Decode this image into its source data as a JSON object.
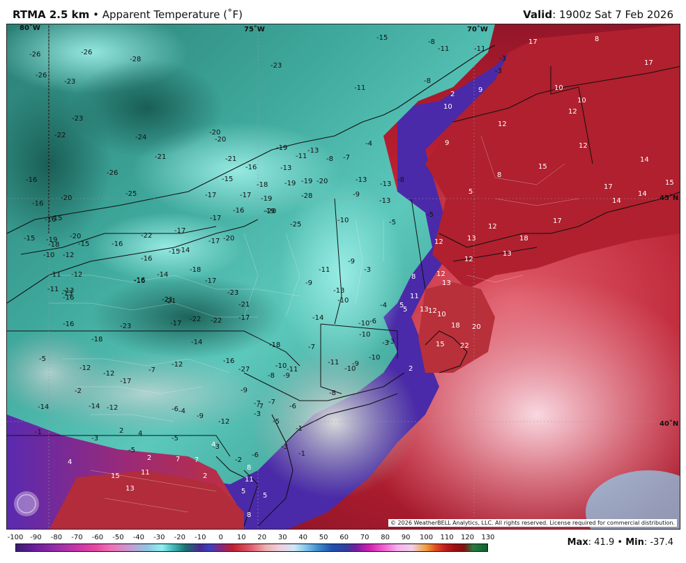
{
  "header": {
    "product": "RTMA 2.5 km",
    "separator": "•",
    "field": "Apparent Temperature (˚F)",
    "valid_label": "Valid",
    "valid_time": ": 1900z Sat 7 Feb 2026"
  },
  "grid_labels": {
    "lon80": "80˚W",
    "lon75": "75˚W",
    "lon70": "70˚W",
    "lat45": "45˚N",
    "lat40": "40˚N"
  },
  "copyright": "© 2026 WeatherBELL Analytics, LLC. All rights reserved. License required for commercial distribution.",
  "legend": {
    "ticks": [
      "-100",
      "-90",
      "-80",
      "-70",
      "-60",
      "-50",
      "-40",
      "-30",
      "-20",
      "-10",
      "0",
      "10",
      "20",
      "30",
      "40",
      "50",
      "60",
      "70",
      "80",
      "90",
      "100",
      "110",
      "120",
      "130"
    ],
    "max_label": "Max",
    "max_value": ": 41.9",
    "dot": "•",
    "min_label": "Min",
    "min_value": ": -37.4"
  },
  "colors": {
    "cold_teal": "#1f6e66",
    "light_teal": "#7fe0d8",
    "ocean_purple": "#4a2aa0",
    "warm_red": "#b8222e",
    "pink": "#f0a8b8",
    "gray": "#b8c0c0"
  },
  "map_values": [
    {
      "t": "-15"
    },
    {
      "t": "-8"
    },
    {
      "t": "-11"
    },
    {
      "t": "-11"
    },
    {
      "t": "-3"
    },
    {
      "t": "17"
    },
    {
      "t": "8"
    },
    {
      "t": "17"
    },
    {
      "t": "-26"
    },
    {
      "t": "-26"
    },
    {
      "t": "-28"
    },
    {
      "t": "-23"
    },
    {
      "t": "-3"
    },
    {
      "t": "-26"
    },
    {
      "t": "-23"
    },
    {
      "t": "-11"
    },
    {
      "t": "-8"
    },
    {
      "t": "2"
    },
    {
      "t": "9"
    },
    {
      "t": "10"
    },
    {
      "t": "10"
    },
    {
      "t": "10"
    },
    {
      "t": "12"
    },
    {
      "t": "-23"
    },
    {
      "t": "-20"
    },
    {
      "t": "-4"
    },
    {
      "t": "12"
    },
    {
      "t": "-22"
    },
    {
      "t": "-24"
    },
    {
      "t": "-20"
    },
    {
      "t": "-19"
    },
    {
      "t": "-13"
    },
    {
      "t": "-21"
    },
    {
      "t": "-8"
    },
    {
      "t": "-7"
    },
    {
      "t": "9"
    },
    {
      "t": "12"
    },
    {
      "t": "-21"
    },
    {
      "t": "-16"
    },
    {
      "t": "-13"
    },
    {
      "t": "-11"
    },
    {
      "t": "14"
    },
    {
      "t": "15"
    },
    {
      "t": "-26"
    },
    {
      "t": "-16"
    },
    {
      "t": "-15"
    },
    {
      "t": "-18"
    },
    {
      "t": "-19"
    },
    {
      "t": "-19"
    },
    {
      "t": "-20"
    },
    {
      "t": "-13"
    },
    {
      "t": "-13"
    },
    {
      "t": "8"
    },
    {
      "t": "-8"
    },
    {
      "t": "15"
    },
    {
      "t": "17"
    },
    {
      "t": "14"
    },
    {
      "t": "-25"
    },
    {
      "t": "-17"
    },
    {
      "t": "-17"
    },
    {
      "t": "-19"
    },
    {
      "t": "-28"
    },
    {
      "t": "-9"
    },
    {
      "t": "-13"
    },
    {
      "t": "5"
    },
    {
      "t": "-16"
    },
    {
      "t": "-20"
    },
    {
      "t": "-19"
    },
    {
      "t": "-16"
    },
    {
      "t": "-20"
    },
    {
      "t": "14"
    },
    {
      "t": "-5"
    },
    {
      "t": "-17"
    },
    {
      "t": "-25"
    },
    {
      "t": "-10"
    },
    {
      "t": "-5"
    },
    {
      "t": "12"
    },
    {
      "t": "17"
    },
    {
      "t": "-16"
    },
    {
      "t": "-15"
    },
    {
      "t": "-19"
    },
    {
      "t": "-20"
    },
    {
      "t": "-15"
    },
    {
      "t": "-16"
    },
    {
      "t": "-22"
    },
    {
      "t": "-17"
    },
    {
      "t": "-17"
    },
    {
      "t": "-20"
    },
    {
      "t": "-16"
    },
    {
      "t": "-14"
    },
    {
      "t": "12"
    },
    {
      "t": "13"
    },
    {
      "t": "18"
    },
    {
      "t": "-18"
    },
    {
      "t": "-15"
    },
    {
      "t": "-15"
    },
    {
      "t": "-10"
    },
    {
      "t": "-12"
    },
    {
      "t": "-16"
    },
    {
      "t": "-9"
    },
    {
      "t": "-11"
    },
    {
      "t": "-12"
    },
    {
      "t": "-14"
    },
    {
      "t": "-18"
    },
    {
      "t": "-17"
    },
    {
      "t": "-11"
    },
    {
      "t": "-3"
    },
    {
      "t": "12"
    },
    {
      "t": "13"
    },
    {
      "t": "12"
    },
    {
      "t": "-11"
    },
    {
      "t": "-13"
    },
    {
      "t": "-16"
    },
    {
      "t": "-21"
    },
    {
      "t": "-9"
    },
    {
      "t": "8"
    },
    {
      "t": "13"
    },
    {
      "t": "-13"
    },
    {
      "t": "-21"
    },
    {
      "t": "-23"
    },
    {
      "t": "-13"
    },
    {
      "t": "-16"
    },
    {
      "t": "-10"
    },
    {
      "t": "-21"
    },
    {
      "t": "-22"
    },
    {
      "t": "-17"
    },
    {
      "t": "-4"
    },
    {
      "t": "5"
    },
    {
      "t": "13"
    },
    {
      "t": "-16"
    },
    {
      "t": "-23"
    },
    {
      "t": "-17"
    },
    {
      "t": "-22"
    },
    {
      "t": "-14"
    },
    {
      "t": "-10"
    },
    {
      "t": "-6"
    },
    {
      "t": "11"
    },
    {
      "t": "12"
    },
    {
      "t": "10"
    },
    {
      "t": "18"
    },
    {
      "t": "20"
    },
    {
      "t": "-18"
    },
    {
      "t": "-14"
    },
    {
      "t": "-18"
    },
    {
      "t": "-7"
    },
    {
      "t": "-10"
    },
    {
      "t": "-3"
    },
    {
      "t": "5"
    },
    {
      "t": "15"
    },
    {
      "t": "22"
    },
    {
      "t": "-5"
    },
    {
      "t": "-12"
    },
    {
      "t": "-12"
    },
    {
      "t": "-12"
    },
    {
      "t": "-16"
    },
    {
      "t": "-27"
    },
    {
      "t": "-10"
    },
    {
      "t": "-11"
    },
    {
      "t": "-9"
    },
    {
      "t": "-10"
    },
    {
      "t": "-10"
    },
    {
      "t": "2"
    },
    {
      "t": "-3"
    },
    {
      "t": "-17"
    },
    {
      "t": "-7"
    },
    {
      "t": "-8"
    },
    {
      "t": "-9"
    },
    {
      "t": "-11"
    },
    {
      "t": "-6"
    },
    {
      "t": "-8"
    },
    {
      "t": "-2"
    },
    {
      "t": "-14"
    },
    {
      "t": "-12"
    },
    {
      "t": "-6"
    },
    {
      "t": "-4"
    },
    {
      "t": "-9"
    },
    {
      "t": "-12"
    },
    {
      "t": "-9"
    },
    {
      "t": "-7"
    },
    {
      "t": "-7"
    },
    {
      "t": "-7"
    },
    {
      "t": "-3"
    },
    {
      "t": "-14"
    },
    {
      "t": "4"
    },
    {
      "t": "-3"
    },
    {
      "t": "-5"
    },
    {
      "t": "-6"
    },
    {
      "t": "-5"
    },
    {
      "t": "-3"
    },
    {
      "t": "-1"
    },
    {
      "t": "-2"
    },
    {
      "t": "-1"
    },
    {
      "t": "2"
    },
    {
      "t": "-5"
    },
    {
      "t": "-3"
    },
    {
      "t": "-1"
    },
    {
      "t": "4"
    },
    {
      "t": "2"
    },
    {
      "t": "7"
    },
    {
      "t": "4"
    },
    {
      "t": "2"
    },
    {
      "t": "8"
    },
    {
      "t": "11"
    },
    {
      "t": "7"
    },
    {
      "t": "15"
    },
    {
      "t": "11"
    },
    {
      "t": "13"
    },
    {
      "t": "5"
    },
    {
      "t": "5"
    },
    {
      "t": "8"
    }
  ]
}
